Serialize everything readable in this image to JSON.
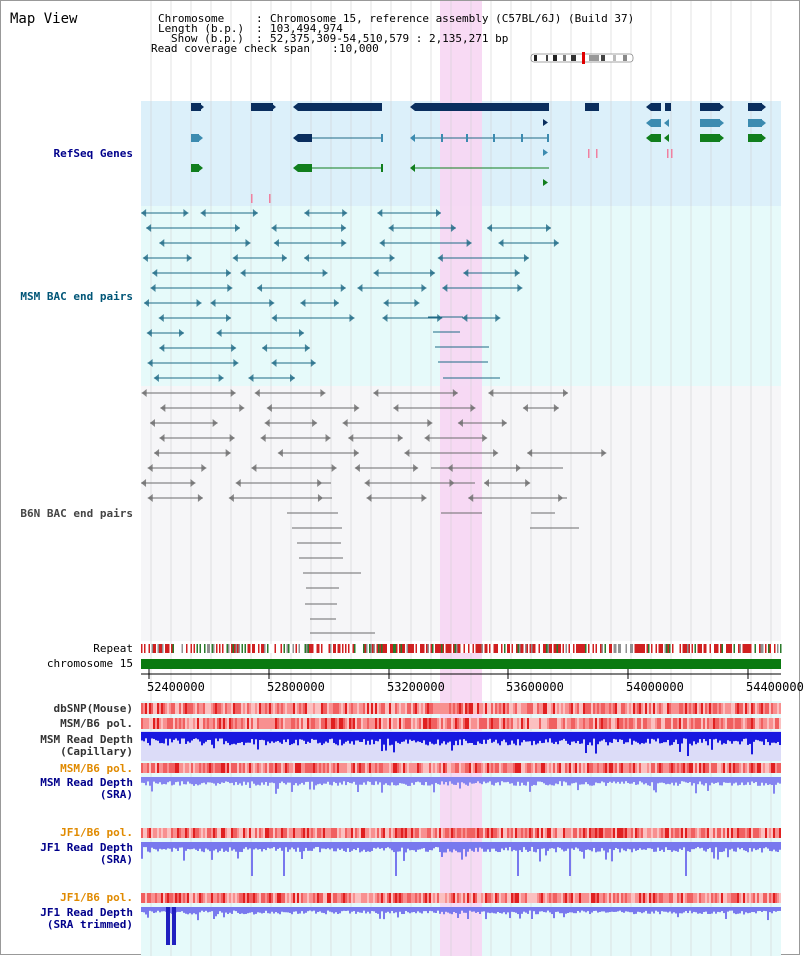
{
  "view_title": "Map View",
  "header": {
    "chromosome_label": "Chromosome",
    "chromosome_value": "Chromosome 15, reference assembly (C57BL/6J) (Build 37)",
    "length_label": "Length (b.p.)",
    "length_value": "103,494,974",
    "show_label": "Show (b.p.)",
    "show_value": "52,375,309-54,510,579 : 2,135,271 bp",
    "coverage_label": "Read coverage check span",
    "coverage_value": "10,000"
  },
  "tracks": {
    "refseq": "RefSeq Genes",
    "msm_bac": "MSM BAC end pairs",
    "b6n_bac": "B6N BAC end pairs",
    "repeat": "Repeat",
    "chromosome": "chromosome 15",
    "dbsnp": "dbSNP(Mouse)",
    "msm_b6_pol_1": "MSM/B6 pol.",
    "msm_read_cap_1": "MSM Read Depth",
    "msm_read_cap_2": "(Capillary)",
    "msm_b6_pol_2": "MSM/B6 pol.",
    "msm_read_sra_1": "MSM Read Depth",
    "msm_read_sra_2": "(SRA)",
    "jf1_pol_1": "JF1/B6 pol.",
    "jf1_read_sra_1": "JF1 Read Depth",
    "jf1_read_sra_2": "(SRA)",
    "jf1_pol_2": "JF1/B6 pol.",
    "jf1_trim_1": "JF1 Read Depth",
    "jf1_trim_2": "(SRA trimmed)"
  },
  "axis_ticks": [
    "52400000",
    "52800000",
    "53200000",
    "53600000",
    "54000000",
    "54400000"
  ],
  "colors": {
    "refseq_bg": "#dcf0fa",
    "msm_bg": "#e6fafa",
    "b6n_bg": "#f6f6f8",
    "lower_bg": "#e6fafa",
    "highlight": "#f7d6f3",
    "gene_dark": "#0a2e5e",
    "gene_mid": "#3c8bb0",
    "gene_green": "#117e1d",
    "msm_pair": "#1f6a86",
    "b6n_pair": "#6b6b6b",
    "chromosome_bar": "#0a7a10",
    "repeat_red": "#d02020",
    "depth_blue": "#1818e0",
    "depth_light": "#8484f0",
    "pol_red": "#e84040",
    "label_blue": "#00008b",
    "label_teal": "#005577",
    "label_orange": "#e08a00"
  }
}
